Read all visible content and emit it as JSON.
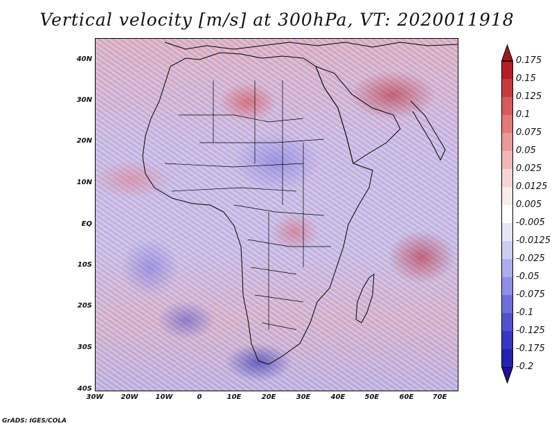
{
  "title": "Vertical velocity [m/s] at 300hPa, VT: 2020011918",
  "credit": "GrADS: IGES/COLA",
  "map": {
    "lat_labels": [
      "40N",
      "30N",
      "20N",
      "10N",
      "EQ",
      "10S",
      "20S",
      "30S",
      "40S"
    ],
    "lon_labels": [
      "30W",
      "20W",
      "10W",
      "0",
      "10E",
      "20E",
      "30E",
      "40E",
      "50E",
      "60E",
      "70E"
    ],
    "region": "Africa"
  },
  "colorbar": {
    "top_arrow_color": "#a01818",
    "bottom_arrow_color": "#20109a",
    "segments": [
      {
        "color": "#b81d26"
      },
      {
        "color": "#c93a3e"
      },
      {
        "color": "#d85a5b"
      },
      {
        "color": "#e27a7a"
      },
      {
        "color": "#ea9a99"
      },
      {
        "color": "#f1b8b8"
      },
      {
        "color": "#f7d4d4"
      },
      {
        "color": "#fbebeb"
      },
      {
        "color": "#ffffff"
      },
      {
        "color": "#e6e6fa"
      },
      {
        "color": "#cdcdf4"
      },
      {
        "color": "#aeaeec"
      },
      {
        "color": "#8f8fe3"
      },
      {
        "color": "#6f6fda"
      },
      {
        "color": "#5252cf"
      },
      {
        "color": "#3737c2"
      },
      {
        "color": "#2323ae"
      }
    ],
    "labels": [
      "0.175",
      "0.15",
      "0.125",
      "0.1",
      "0.075",
      "0.05",
      "0.025",
      "0.0125",
      "0.005",
      "-0.005",
      "-0.0125",
      "-0.025",
      "-0.05",
      "-0.075",
      "-0.1",
      "-0.125",
      "-0.175",
      "-0.2"
    ]
  }
}
